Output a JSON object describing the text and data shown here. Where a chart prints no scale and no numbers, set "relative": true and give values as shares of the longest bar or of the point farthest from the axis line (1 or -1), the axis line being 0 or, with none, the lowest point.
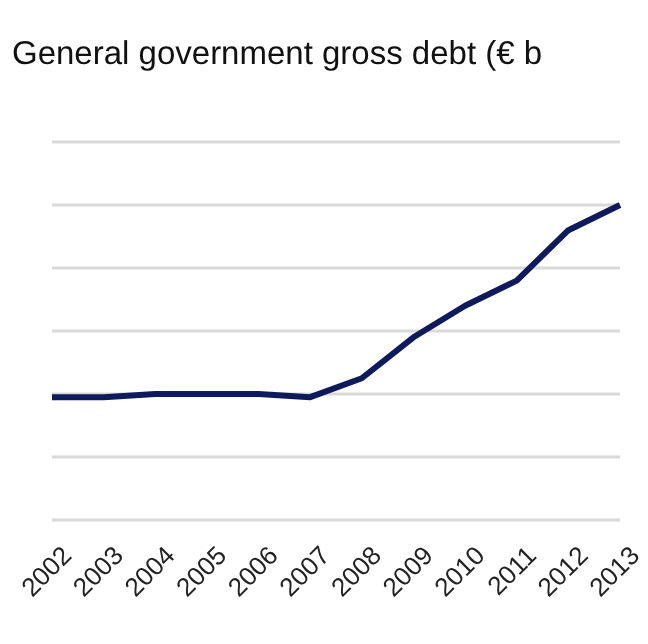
{
  "chart_data": {
    "type": "line",
    "title": "General government gross debt (€ b",
    "categories": [
      "2002",
      "2003",
      "2004",
      "2005",
      "2006",
      "2007",
      "2008",
      "2009",
      "2010",
      "2011",
      "2012",
      "2013"
    ],
    "series": [
      {
        "color": "#0d1a5c",
        "values": [
          0.39,
          0.39,
          0.4,
          0.4,
          0.4,
          0.39,
          0.45,
          0.58,
          0.68,
          0.76,
          0.92,
          1
        ]
      }
    ],
    "relative": true,
    "grid": "y",
    "legend": false,
    "marker": "none",
    "line_style": "solid"
  }
}
